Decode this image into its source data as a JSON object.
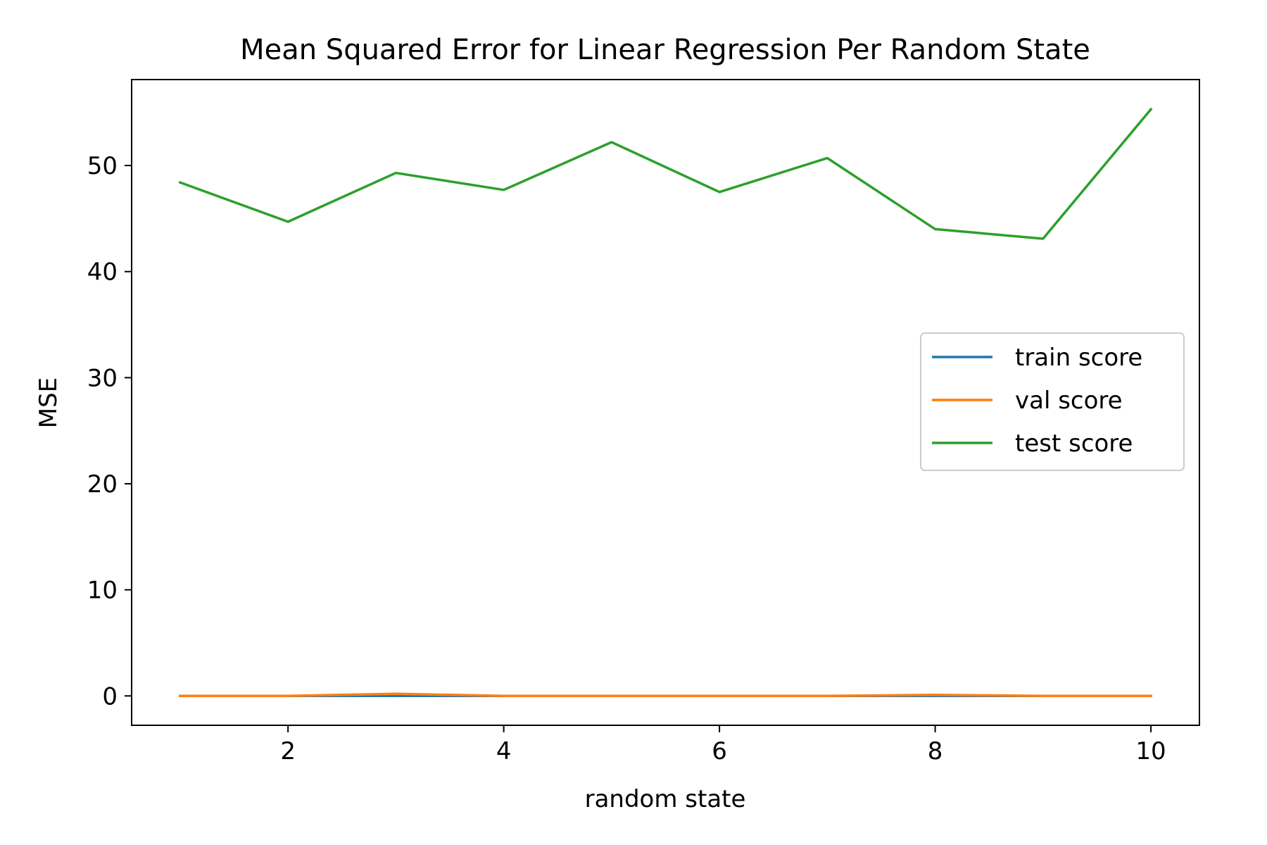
{
  "chart_data": {
    "type": "line",
    "title": "Mean Squared Error for Linear Regression Per Random State",
    "xlabel": "random state",
    "ylabel": "MSE",
    "x": [
      1,
      2,
      3,
      4,
      5,
      6,
      7,
      8,
      9,
      10
    ],
    "xlim": [
      0.55,
      10.45
    ],
    "ylim": [
      -2.77,
      58.1
    ],
    "xticks": [
      2,
      4,
      6,
      8,
      10
    ],
    "yticks": [
      0,
      10,
      20,
      30,
      40,
      50
    ],
    "grid": false,
    "legend_position": "center-right",
    "series": [
      {
        "name": "train score",
        "color": "#1f77b4",
        "values": [
          0.0,
          0.0,
          0.0,
          0.0,
          0.0,
          0.0,
          0.0,
          0.0,
          0.0,
          0.0
        ]
      },
      {
        "name": "val score",
        "color": "#ff7f0e",
        "values": [
          0.0,
          0.0,
          0.2,
          0.0,
          0.0,
          0.0,
          0.0,
          0.1,
          0.0,
          0.0
        ]
      },
      {
        "name": "test score",
        "color": "#2ca02c",
        "values": [
          48.4,
          44.7,
          49.3,
          47.7,
          52.2,
          47.5,
          50.7,
          44.0,
          43.1,
          55.3
        ]
      }
    ]
  }
}
